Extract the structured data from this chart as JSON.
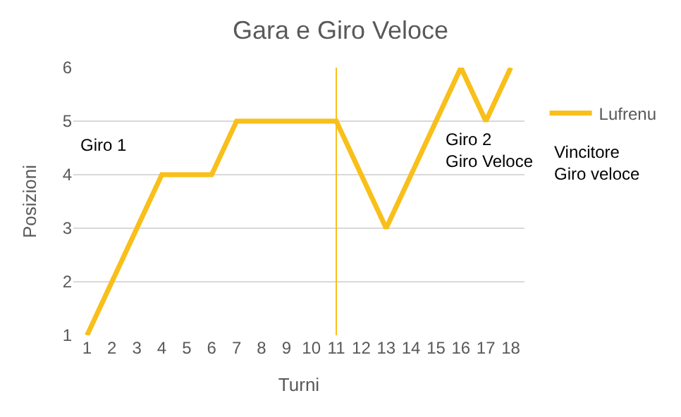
{
  "chart_data": {
    "type": "line",
    "title": "Gara e Giro Veloce",
    "xlabel": "Turni",
    "ylabel": "Posizioni",
    "x": [
      1,
      2,
      3,
      4,
      5,
      6,
      7,
      8,
      9,
      10,
      11,
      12,
      13,
      14,
      15,
      16,
      17,
      18
    ],
    "series": [
      {
        "name": "Lufrenu",
        "color": "#f9bf1a",
        "values": [
          1,
          2,
          3,
          4,
          4,
          4,
          5,
          5,
          5,
          5,
          5,
          4,
          3,
          4,
          5,
          6,
          5,
          6
        ]
      }
    ],
    "xlim": [
      0.45,
      18.55
    ],
    "xticks": [
      1,
      2,
      3,
      4,
      5,
      6,
      7,
      8,
      9,
      10,
      11,
      12,
      13,
      14,
      15,
      16,
      17,
      18
    ],
    "ylim": [
      1,
      6
    ],
    "yticks": [
      1,
      2,
      3,
      4,
      5,
      6
    ],
    "ref_lines": [
      {
        "axis": "x",
        "value": 11,
        "color": "#f9bf1a"
      }
    ],
    "annotations": [
      "Giro 1",
      "Giro 2\nGiro Veloce",
      "Vincitore\nGiro veloce"
    ],
    "grid": "y",
    "legend": "right",
    "marker": "none",
    "line_style": "solid"
  }
}
